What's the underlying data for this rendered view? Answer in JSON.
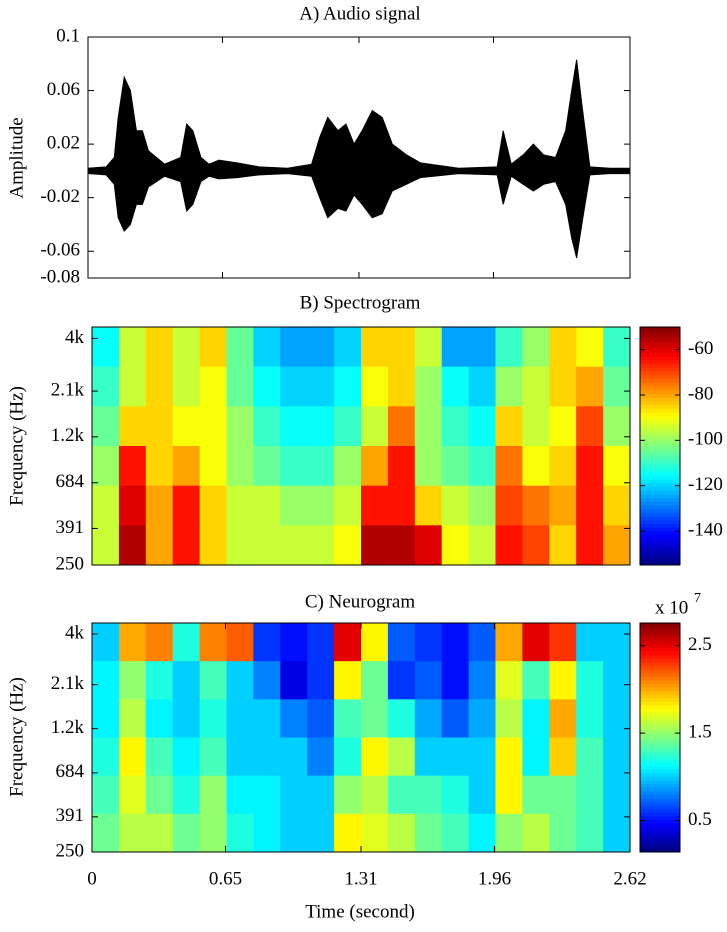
{
  "chart_data": [
    {
      "type": "area",
      "title": "A) Audio signal",
      "y_label": "Amplitude",
      "x": [
        0,
        0.088,
        0.127,
        0.146,
        0.175,
        0.205,
        0.234,
        0.263,
        0.292,
        0.331,
        0.37,
        0.448,
        0.477,
        0.507,
        0.546,
        0.585,
        0.633,
        0.721,
        0.828,
        0.964,
        1.081,
        1.12,
        1.159,
        1.208,
        1.247,
        1.286,
        1.325,
        1.374,
        1.422,
        1.471,
        1.539,
        1.607,
        1.792,
        1.978,
        2.007,
        2.046,
        2.104,
        2.153,
        2.202,
        2.26,
        2.309,
        2.338,
        2.362,
        2.387,
        2.426,
        2.523,
        2.62
      ],
      "values": [
        0.002,
        0.003,
        0.01,
        0.04,
        0.07,
        0.06,
        0.03,
        0.03,
        0.015,
        0.01,
        0.005,
        0.01,
        0.035,
        0.03,
        0.01,
        0.005,
        0.008,
        0.006,
        0.003,
        0.002,
        0.005,
        0.025,
        0.04,
        0.03,
        0.035,
        0.02,
        0.03,
        0.045,
        0.04,
        0.02,
        0.012,
        0.006,
        0.002,
        0.003,
        0.03,
        0.005,
        0.012,
        0.02,
        0.012,
        0.01,
        0.03,
        0.06,
        0.083,
        0.05,
        0.003,
        0.002,
        0.002
      ],
      "values_lower": [
        -0.002,
        -0.003,
        -0.01,
        -0.035,
        -0.045,
        -0.04,
        -0.025,
        -0.025,
        -0.012,
        -0.008,
        -0.004,
        -0.008,
        -0.03,
        -0.025,
        -0.008,
        -0.004,
        -0.006,
        -0.005,
        -0.003,
        -0.002,
        -0.004,
        -0.02,
        -0.035,
        -0.028,
        -0.03,
        -0.018,
        -0.025,
        -0.035,
        -0.032,
        -0.015,
        -0.01,
        -0.005,
        -0.002,
        -0.003,
        -0.025,
        -0.004,
        -0.01,
        -0.015,
        -0.01,
        -0.008,
        -0.025,
        -0.05,
        -0.065,
        -0.04,
        -0.003,
        -0.002,
        -0.002
      ],
      "color": "#000000",
      "xlim": [
        0,
        2.62
      ],
      "xticks": [
        0,
        0.65,
        1.31,
        1.96,
        2.62
      ],
      "ylim": [
        -0.08,
        0.1
      ],
      "yticks": [
        0.1,
        0.06,
        0.02,
        -0.02,
        -0.06,
        -0.08
      ]
    },
    {
      "type": "heatmap",
      "title": "B) Spectrogram",
      "y_label": "Frequency (Hz)",
      "colormap": "jet",
      "xlim": [
        0,
        2.62
      ],
      "ylim": [
        250,
        4600
      ],
      "log_y": true,
      "yticks": [
        {
          "value": 4000,
          "label": "4k"
        },
        {
          "value": 2100,
          "label": "2.1k"
        },
        {
          "value": 1200,
          "label": "1.2k"
        },
        684,
        391,
        250
      ],
      "clim": [
        -155,
        -50
      ],
      "colorbar_ticks": [
        -60,
        -80,
        -100,
        -120,
        -140
      ],
      "values": [
        [
          -115,
          -95,
          -85,
          -95,
          -85,
          -105,
          -120,
          -125,
          -125,
          -120,
          -85,
          -85,
          -95,
          -125,
          -125,
          -110,
          -100,
          -85,
          -90,
          -110
        ],
        [
          -110,
          -95,
          -85,
          -95,
          -90,
          -105,
          -115,
          -120,
          -120,
          -115,
          -90,
          -85,
          -100,
          -115,
          -120,
          -100,
          -95,
          -85,
          -80,
          -105
        ],
        [
          -105,
          -85,
          -85,
          -90,
          -90,
          -100,
          -110,
          -115,
          -115,
          -110,
          -95,
          -75,
          -100,
          -110,
          -115,
          -85,
          -95,
          -90,
          -70,
          -100
        ],
        [
          -100,
          -65,
          -85,
          -80,
          -90,
          -100,
          -105,
          -110,
          -110,
          -100,
          -80,
          -65,
          -100,
          -105,
          -110,
          -75,
          -90,
          -85,
          -65,
          -90
        ],
        [
          -95,
          -60,
          -80,
          -65,
          -85,
          -95,
          -95,
          -100,
          -100,
          -95,
          -65,
          -65,
          -85,
          -95,
          -100,
          -70,
          -75,
          -80,
          -65,
          -85
        ],
        [
          -95,
          -55,
          -80,
          -65,
          -85,
          -95,
          -95,
          -95,
          -95,
          -90,
          -55,
          -55,
          -60,
          -90,
          -95,
          -65,
          -70,
          -85,
          -65,
          -80
        ]
      ]
    },
    {
      "type": "heatmap",
      "title": "C) Neurogram",
      "y_label": "Frequency (Hz)",
      "x_label": "Time (second)",
      "colormap": "jet",
      "xlim": [
        0,
        2.62
      ],
      "xticks": [
        0,
        0.65,
        1.31,
        1.96,
        2.62
      ],
      "ylim": [
        250,
        4600
      ],
      "log_y": true,
      "yticks": [
        {
          "value": 4000,
          "label": "4k"
        },
        {
          "value": 2100,
          "label": "2.1k"
        },
        {
          "value": 1200,
          "label": "1.2k"
        },
        684,
        391,
        250
      ],
      "clim": [
        0.14,
        2.76
      ],
      "colorbar_ticks": [
        2.5,
        1.5,
        0.5
      ],
      "colorbar_scale_label": "x 10",
      "colorbar_scale_exponent": "7",
      "values": [
        [
          1.0,
          2.0,
          2.1,
          1.2,
          2.1,
          2.2,
          0.6,
          0.5,
          0.6,
          2.5,
          1.8,
          0.7,
          0.6,
          0.5,
          0.7,
          2.0,
          2.5,
          2.3,
          1.0,
          1.0
        ],
        [
          1.1,
          1.5,
          1.2,
          1.0,
          1.3,
          1.0,
          0.8,
          0.4,
          0.6,
          1.8,
          1.4,
          0.6,
          0.7,
          0.5,
          0.8,
          1.7,
          1.3,
          1.8,
          1.2,
          1.0
        ],
        [
          1.1,
          1.6,
          1.1,
          1.0,
          1.2,
          1.0,
          1.0,
          0.8,
          0.7,
          1.3,
          1.4,
          1.2,
          0.9,
          0.7,
          0.9,
          1.6,
          1.1,
          2.0,
          1.2,
          1.0
        ],
        [
          1.2,
          1.8,
          1.3,
          1.1,
          1.3,
          1.0,
          1.0,
          1.0,
          0.8,
          1.2,
          1.8,
          1.6,
          1.0,
          1.0,
          1.0,
          1.8,
          1.1,
          1.9,
          1.3,
          1.0
        ],
        [
          1.3,
          1.7,
          1.4,
          1.2,
          1.5,
          1.1,
          1.1,
          1.0,
          1.0,
          1.5,
          1.6,
          1.3,
          1.3,
          1.2,
          1.0,
          1.8,
          1.4,
          1.4,
          1.3,
          1.0
        ],
        [
          1.4,
          1.6,
          1.6,
          1.4,
          1.5,
          1.2,
          1.1,
          1.0,
          1.0,
          1.8,
          1.7,
          1.6,
          1.4,
          1.3,
          1.1,
          1.5,
          1.6,
          1.4,
          1.3,
          1.0
        ]
      ]
    }
  ]
}
